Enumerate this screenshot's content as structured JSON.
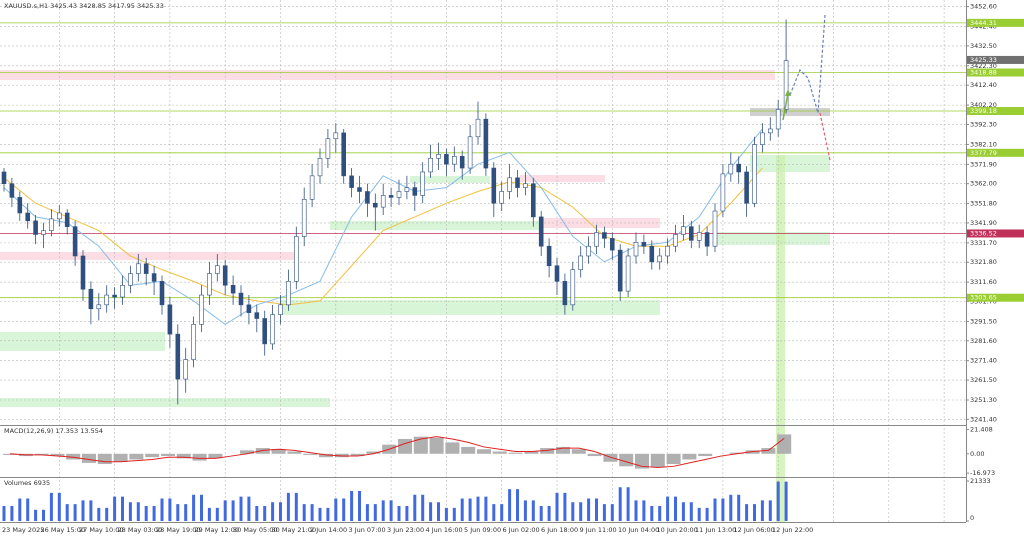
{
  "chart_data": {
    "type": "candlestick",
    "title": "XAUUSD.s,H1  3425.43 3428.85 3417.95 3425.33",
    "bull_color": "#ffffff",
    "bear_color": "#2f4f7f",
    "wick_color": "#2f4f7f",
    "ylim": [
      3238.5,
      3456
    ],
    "yticks": [
      {
        "value": 3452.6,
        "label": "3452.60"
      },
      {
        "value": 3442.4,
        "label": "3442.40"
      },
      {
        "value": 3432.5,
        "label": "3432.50"
      },
      {
        "value": 3422.3,
        "label": "3422.30"
      },
      {
        "value": 3412.4,
        "label": "3412.40"
      },
      {
        "value": 3402.2,
        "label": "3402.20"
      },
      {
        "value": 3392.3,
        "label": "3392.30"
      },
      {
        "value": 3382.1,
        "label": "3382.10"
      },
      {
        "value": 3371.9,
        "label": "3371.90"
      },
      {
        "value": 3362.0,
        "label": "3362.00"
      },
      {
        "value": 3351.8,
        "label": "3351.80"
      },
      {
        "value": 3341.9,
        "label": "3341.90"
      },
      {
        "value": 3331.7,
        "label": "3331.70"
      },
      {
        "value": 3321.8,
        "label": "3321.80"
      },
      {
        "value": 3311.6,
        "label": "3311.60"
      },
      {
        "value": 3301.7,
        "label": "3301.70"
      },
      {
        "value": 3291.5,
        "label": "3291.50"
      },
      {
        "value": 3281.6,
        "label": "3281.60"
      },
      {
        "value": 3271.4,
        "label": "3271.40"
      },
      {
        "value": 3261.5,
        "label": "3261.50"
      },
      {
        "value": 3251.3,
        "label": "3251.30"
      },
      {
        "value": 3241.4,
        "label": "3241.40"
      }
    ],
    "x_labels": [
      "23 May 2025",
      "26 May 15:00",
      "27 May 10:00",
      "28 May 03:00",
      "28 May 19:00",
      "29 May 12:00",
      "30 May 05:00",
      "30 May 21:00",
      "2 Jun 14:00",
      "3 Jun 07:00",
      "3 Jun 23:00",
      "4 Jun 16:00",
      "5 Jun 09:00",
      "6 Jun 02:00",
      "6 Jun 18:00",
      "9 Jun 11:00",
      "10 Jun 04:00",
      "10 Jun 20:00",
      "11 Jun 13:00",
      "12 Jun 06:00",
      "12 Jun 22:00"
    ],
    "candles": [
      [
        3368,
        3370,
        3358,
        3362
      ],
      [
        3362,
        3365,
        3350,
        3355
      ],
      [
        3355,
        3358,
        3343,
        3347
      ],
      [
        3347,
        3352,
        3339,
        3343
      ],
      [
        3343,
        3346,
        3331,
        3336
      ],
      [
        3336,
        3342,
        3329,
        3338
      ],
      [
        3338,
        3349,
        3335,
        3344
      ],
      [
        3344,
        3351,
        3340,
        3347
      ],
      [
        3347,
        3349,
        3336,
        3340
      ],
      [
        3340,
        3343,
        3320,
        3325
      ],
      [
        3325,
        3328,
        3302,
        3308
      ],
      [
        3308,
        3312,
        3290,
        3298
      ],
      [
        3298,
        3306,
        3292,
        3300
      ],
      [
        3300,
        3310,
        3296,
        3305
      ],
      [
        3305,
        3309,
        3298,
        3304
      ],
      [
        3304,
        3315,
        3300,
        3310
      ],
      [
        3310,
        3320,
        3306,
        3316
      ],
      [
        3316,
        3326,
        3312,
        3321
      ],
      [
        3321,
        3324,
        3310,
        3316
      ],
      [
        3316,
        3320,
        3305,
        3312
      ],
      [
        3312,
        3315,
        3295,
        3300
      ],
      [
        3300,
        3304,
        3278,
        3285
      ],
      [
        3285,
        3290,
        3249,
        3262
      ],
      [
        3262,
        3278,
        3255,
        3272
      ],
      [
        3272,
        3294,
        3268,
        3290
      ],
      [
        3290,
        3310,
        3286,
        3305
      ],
      [
        3305,
        3322,
        3300,
        3316
      ],
      [
        3316,
        3326,
        3312,
        3320
      ],
      [
        3320,
        3323,
        3305,
        3310
      ],
      [
        3310,
        3315,
        3300,
        3306
      ],
      [
        3306,
        3310,
        3294,
        3300
      ],
      [
        3300,
        3305,
        3290,
        3296
      ],
      [
        3296,
        3300,
        3286,
        3293
      ],
      [
        3293,
        3297,
        3274,
        3280
      ],
      [
        3280,
        3300,
        3277,
        3295
      ],
      [
        3295,
        3305,
        3290,
        3300
      ],
      [
        3300,
        3318,
        3297,
        3312
      ],
      [
        3312,
        3340,
        3308,
        3335
      ],
      [
        3335,
        3360,
        3330,
        3354
      ],
      [
        3354,
        3372,
        3350,
        3366
      ],
      [
        3366,
        3380,
        3362,
        3375
      ],
      [
        3375,
        3390,
        3370,
        3385
      ],
      [
        3385,
        3393,
        3378,
        3388
      ],
      [
        3388,
        3390,
        3362,
        3366
      ],
      [
        3366,
        3370,
        3355,
        3360
      ],
      [
        3360,
        3366,
        3352,
        3358
      ],
      [
        3358,
        3362,
        3345,
        3352
      ],
      [
        3352,
        3357,
        3338,
        3350
      ],
      [
        3350,
        3362,
        3346,
        3356
      ],
      [
        3356,
        3360,
        3350,
        3355
      ],
      [
        3355,
        3364,
        3351,
        3358
      ],
      [
        3358,
        3366,
        3354,
        3360
      ],
      [
        3360,
        3363,
        3348,
        3356
      ],
      [
        3356,
        3373,
        3352,
        3368
      ],
      [
        3368,
        3382,
        3365,
        3375
      ],
      [
        3375,
        3383,
        3369,
        3377
      ],
      [
        3377,
        3380,
        3366,
        3372
      ],
      [
        3372,
        3381,
        3368,
        3376
      ],
      [
        3376,
        3379,
        3364,
        3370
      ],
      [
        3370,
        3392,
        3367,
        3386
      ],
      [
        3386,
        3404,
        3382,
        3395
      ],
      [
        3395,
        3398,
        3366,
        3370
      ],
      [
        3370,
        3373,
        3345,
        3352
      ],
      [
        3352,
        3363,
        3348,
        3358
      ],
      [
        3358,
        3372,
        3354,
        3365
      ],
      [
        3365,
        3369,
        3355,
        3360
      ],
      [
        3360,
        3368,
        3356,
        3362
      ],
      [
        3362,
        3365,
        3340,
        3345
      ],
      [
        3345,
        3348,
        3325,
        3330
      ],
      [
        3330,
        3334,
        3314,
        3320
      ],
      [
        3320,
        3324,
        3305,
        3312
      ],
      [
        3312,
        3316,
        3295,
        3300
      ],
      [
        3300,
        3322,
        3297,
        3318
      ],
      [
        3318,
        3330,
        3314,
        3325
      ],
      [
        3325,
        3335,
        3321,
        3330
      ],
      [
        3330,
        3341,
        3326,
        3337
      ],
      [
        3337,
        3340,
        3329,
        3334
      ],
      [
        3334,
        3337,
        3323,
        3328
      ],
      [
        3328,
        3331,
        3302,
        3307
      ],
      [
        3307,
        3329,
        3304,
        3325
      ],
      [
        3325,
        3337,
        3321,
        3332
      ],
      [
        3332,
        3336,
        3326,
        3330
      ],
      [
        3330,
        3333,
        3318,
        3322
      ],
      [
        3322,
        3329,
        3318,
        3325
      ],
      [
        3325,
        3334,
        3321,
        3330
      ],
      [
        3330,
        3341,
        3327,
        3336
      ],
      [
        3336,
        3346,
        3333,
        3340
      ],
      [
        3340,
        3343,
        3329,
        3333
      ],
      [
        3333,
        3341,
        3329,
        3337
      ],
      [
        3337,
        3340,
        3325,
        3330
      ],
      [
        3330,
        3352,
        3327,
        3348
      ],
      [
        3348,
        3372,
        3345,
        3367
      ],
      [
        3367,
        3378,
        3363,
        3372
      ],
      [
        3372,
        3376,
        3362,
        3368
      ],
      [
        3368,
        3371,
        3345,
        3352
      ],
      [
        3352,
        3386,
        3350,
        3382
      ],
      [
        3382,
        3393,
        3378,
        3388
      ],
      [
        3388,
        3396,
        3384,
        3390
      ],
      [
        3390,
        3405,
        3386,
        3400
      ],
      [
        3400,
        3446,
        3398,
        3425
      ]
    ],
    "ma_fast": {
      "color": "#87bde8",
      "values": [
        3360,
        3345,
        3342,
        3330,
        3310,
        3312,
        3302,
        3290,
        3300,
        3305,
        3312,
        3345,
        3366,
        3358,
        3360,
        3372,
        3378,
        3360,
        3335,
        3322,
        3330,
        3332,
        3345,
        3370,
        3390
      ]
    },
    "ma_slow": {
      "color": "#f0c040",
      "values": [
        3365,
        3352,
        3345,
        3338,
        3325,
        3318,
        3312,
        3305,
        3302,
        3300,
        3302,
        3320,
        3338,
        3345,
        3352,
        3358,
        3363,
        3360,
        3350,
        3335,
        3330,
        3330,
        3336,
        3352,
        3370
      ]
    },
    "levels": [
      {
        "value": 3444.31,
        "color": "#9acd32"
      },
      {
        "value": 3418.88,
        "color": "#9acd32"
      },
      {
        "value": 3399.18,
        "color": "#9acd32"
      },
      {
        "value": 3377.79,
        "color": "#9acd32"
      },
      {
        "value": 3336.52,
        "color": "#c0305a"
      },
      {
        "value": 3303.65,
        "color": "#9acd32"
      }
    ],
    "current_price": {
      "value": 3425.33,
      "color": "#707070"
    },
    "macd": {
      "label": "MACD(12,26,9) 17.353 13.554",
      "ylim": [
        -19.5,
        23.5
      ],
      "yticks": [
        21.408,
        {
          "value": 0,
          "label": "0.00"
        },
        -16.973
      ],
      "histogram_color": "#b0b0b0",
      "signal_color": "#e02020",
      "histogram": [
        -1,
        -2,
        -1,
        -2,
        -5,
        -8,
        -9,
        -7,
        -5,
        -3,
        -2,
        -4,
        -6,
        -4,
        0,
        3,
        5,
        4,
        2,
        -1,
        -3,
        -3,
        -2,
        2,
        8,
        13,
        15,
        14,
        10,
        6,
        4,
        2,
        1,
        2,
        5,
        6,
        4,
        -2,
        -7,
        -11,
        -13,
        -12,
        -9,
        -5,
        -2,
        0,
        1,
        3,
        5,
        17
      ],
      "signal": [
        0,
        -1,
        -1,
        -2,
        -3,
        -5,
        -7,
        -7,
        -6,
        -5,
        -3,
        -3,
        -4,
        -4,
        -2,
        0,
        3,
        4,
        3,
        1,
        -1,
        -2,
        -2,
        0,
        4,
        9,
        13,
        15,
        13,
        10,
        6,
        4,
        2,
        2,
        3,
        5,
        5,
        2,
        -3,
        -7,
        -11,
        -12,
        -11,
        -8,
        -5,
        -2,
        0,
        2,
        3,
        13.5
      ]
    },
    "volume": {
      "label": "Volumes 6935",
      "ylim": [
        0,
        21333
      ],
      "yticks": [
        21333,
        0
      ],
      "color": "#4169e1",
      "values": [
        8000,
        12000,
        6000,
        15000,
        9000,
        11000,
        7000,
        13000,
        10000,
        8000,
        12000,
        9000,
        14000,
        7000,
        11000,
        13000,
        8000,
        10000,
        15000,
        9000,
        7000,
        12000,
        16000,
        9000,
        11000,
        8000,
        14000,
        10000,
        7000,
        12000,
        13000,
        9000,
        17000,
        11000,
        8000,
        15000,
        10000,
        12000,
        9000,
        18000,
        11000,
        8000,
        13000,
        10000,
        7000,
        12000,
        14000,
        9000,
        11000,
        21000
      ]
    }
  }
}
